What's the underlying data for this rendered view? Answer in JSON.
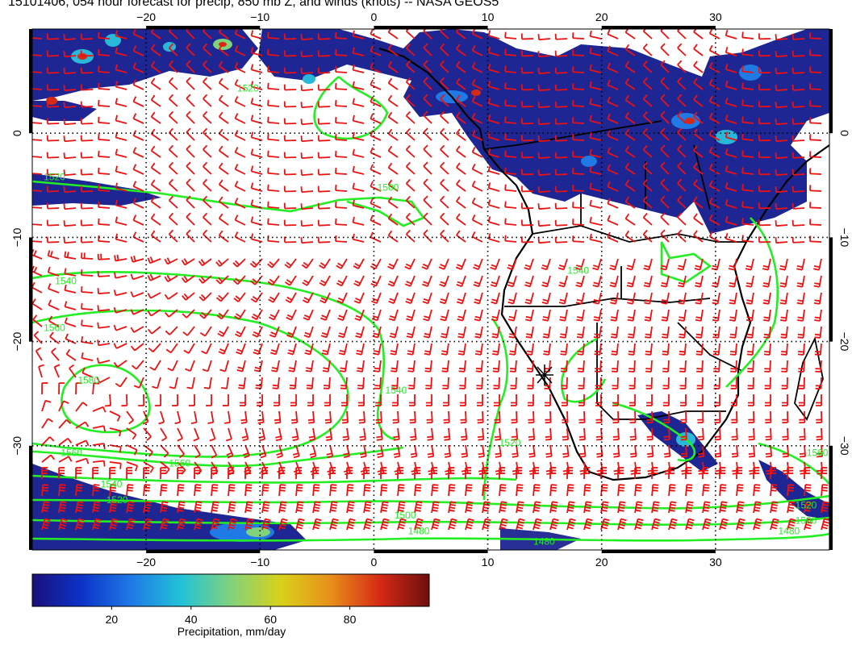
{
  "title": "15101406, 054 hour forecast for precip, 850 mb Z, and winds (knots) -- NASA GEOS5",
  "map": {
    "lon_ticks": [
      "−20",
      "−10",
      "0",
      "10",
      "20",
      "30"
    ],
    "lat_ticks": [
      "0",
      "−10",
      "−20",
      "−30"
    ],
    "lon_range": [
      -30,
      40
    ],
    "lat_range": [
      -40,
      10
    ],
    "gridlines": true,
    "contour_color": "#22ee22",
    "barb_color": "#ee1111",
    "contour_labels": [
      {
        "text": "1520",
        "lon": -29,
        "lat": -4.5
      },
      {
        "text": "1520",
        "lon": -12,
        "lat": 4
      },
      {
        "text": "1500",
        "lon": 0.3,
        "lat": -5.5
      },
      {
        "text": "1540",
        "lon": -28,
        "lat": -14.5
      },
      {
        "text": "1560",
        "lon": -29,
        "lat": -19
      },
      {
        "text": "1580",
        "lon": -26,
        "lat": -24
      },
      {
        "text": "1540",
        "lon": 1,
        "lat": -25
      },
      {
        "text": "1560",
        "lon": -27.5,
        "lat": -31
      },
      {
        "text": "1560",
        "lon": -18,
        "lat": -32
      },
      {
        "text": "1540",
        "lon": -24,
        "lat": -34
      },
      {
        "text": "1520",
        "lon": -23.5,
        "lat": -35.5
      },
      {
        "text": "1500",
        "lon": 1.8,
        "lat": -37
      },
      {
        "text": "1480",
        "lon": 3,
        "lat": -38.5
      },
      {
        "text": "1480",
        "lon": 14,
        "lat": -39.5
      },
      {
        "text": "1520",
        "lon": 11,
        "lat": -30
      },
      {
        "text": "1540",
        "lon": 17,
        "lat": -13.5
      },
      {
        "text": "1560",
        "lon": 38,
        "lat": -31
      },
      {
        "text": "1520",
        "lon": 37,
        "lat": -36
      },
      {
        "text": "1500",
        "lon": 37,
        "lat": -37.5
      },
      {
        "text": "1480",
        "lon": 35.5,
        "lat": -38.5
      }
    ]
  },
  "colorbar": {
    "ticks": [
      "20",
      "40",
      "60",
      "80"
    ],
    "tick_values": [
      20,
      40,
      60,
      80
    ],
    "range": [
      0,
      100
    ],
    "label": "Precipitation, mm/day",
    "stops": [
      "#1a0f7a",
      "#0c33c8",
      "#1f7ae6",
      "#22c2d8",
      "#7fd37a",
      "#d8d21a",
      "#e8901a",
      "#d62a16",
      "#6e0e0e"
    ]
  }
}
